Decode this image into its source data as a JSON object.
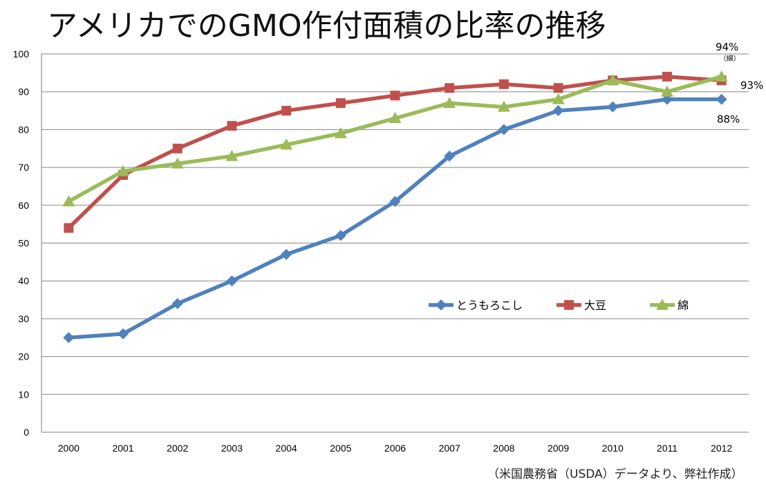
{
  "chart_data": {
    "type": "line",
    "title": "アメリカでのGMO作付面積の比率の推移",
    "source": "（米国農務省（USDA）データより、弊社作成）",
    "x": [
      "2000",
      "2001",
      "2002",
      "2003",
      "2004",
      "2005",
      "2006",
      "2007",
      "2008",
      "2009",
      "2010",
      "2011",
      "2012"
    ],
    "ylim": [
      0,
      100
    ],
    "yticks": [
      0,
      10,
      20,
      30,
      40,
      50,
      60,
      70,
      80,
      90,
      100
    ],
    "grid": true,
    "legend": "center-right",
    "series": [
      {
        "name": "とうもろこし",
        "color": "#4F81BD",
        "marker": "diamond",
        "values": [
          25,
          26,
          34,
          40,
          47,
          52,
          61,
          73,
          80,
          85,
          86,
          88,
          88
        ]
      },
      {
        "name": "大豆",
        "color": "#C0504D",
        "marker": "square",
        "values": [
          54,
          68,
          75,
          81,
          85,
          87,
          89,
          91,
          92,
          91,
          93,
          94,
          93
        ]
      },
      {
        "name": "綿",
        "color": "#9BBB59",
        "marker": "triangle",
        "values": [
          61,
          69,
          71,
          73,
          76,
          79,
          83,
          87,
          86,
          88,
          93,
          90,
          94
        ]
      }
    ],
    "annotations": [
      {
        "text": "94%",
        "sub": "（綿）",
        "series": 2
      },
      {
        "text": "93%",
        "series": 1
      },
      {
        "text": "88%",
        "series": 0
      }
    ]
  }
}
